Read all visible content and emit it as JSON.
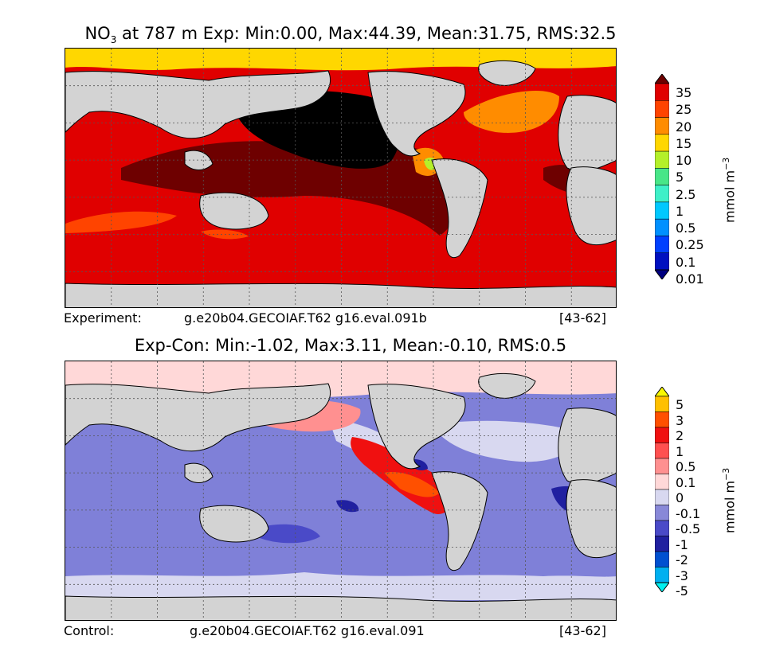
{
  "panels": {
    "top": {
      "title_prefix": "NO",
      "title_sub": "3",
      "title_rest": " at 787 m Exp: Min:0.00, Max:44.39, Mean:31.75, RMS:32.5",
      "footer_label": "Experiment:",
      "footer_case": "g.e20b04.GECOIAF.T62 g16.eval.091b",
      "footer_years": "[43-62]",
      "colorbar": {
        "ticks": [
          "35",
          "25",
          "20",
          "15",
          "10",
          "5",
          "2.5",
          "1",
          "0.5",
          "0.25",
          "0.1",
          "0.01"
        ],
        "colors": [
          "#6e0000",
          "#e00000",
          "#ff4400",
          "#ff8c00",
          "#ffd700",
          "#b4f02a",
          "#48e688",
          "#3ef0c8",
          "#00c8ff",
          "#0090ff",
          "#0040ff",
          "#0010c0",
          "#000080"
        ],
        "units": "mmol m",
        "units_exp": "−3"
      }
    },
    "bottom": {
      "title": "Exp-Con: Min:-1.02, Max:3.11, Mean:-0.10, RMS:0.5",
      "footer_label": "Control:",
      "footer_case": "g.e20b04.GECOIAF.T62 g16.eval.091",
      "footer_years": "[43-62]",
      "colorbar": {
        "ticks": [
          "5",
          "3",
          "2",
          "1",
          "0.5",
          "0.1",
          "0",
          "-0.1",
          "-0.5",
          "-1",
          "-2",
          "-3",
          "-5"
        ],
        "colors": [
          "#f8f800",
          "#ffc000",
          "#ff5000",
          "#f01010",
          "#ff5050",
          "#ff9090",
          "#ffd8d8",
          "#d8d8f0",
          "#8888d8",
          "#4a4ac8",
          "#2020a0",
          "#0050d0",
          "#00b0f0",
          "#00f0f0"
        ],
        "units": "mmol m",
        "units_exp": "−3"
      }
    }
  },
  "colors": {
    "land": "#d3d3d3",
    "top_ocean": "#e00000",
    "bottom_ocean": "#7f80d8",
    "arctic_top": "#ffd700",
    "grid": "#555555"
  }
}
